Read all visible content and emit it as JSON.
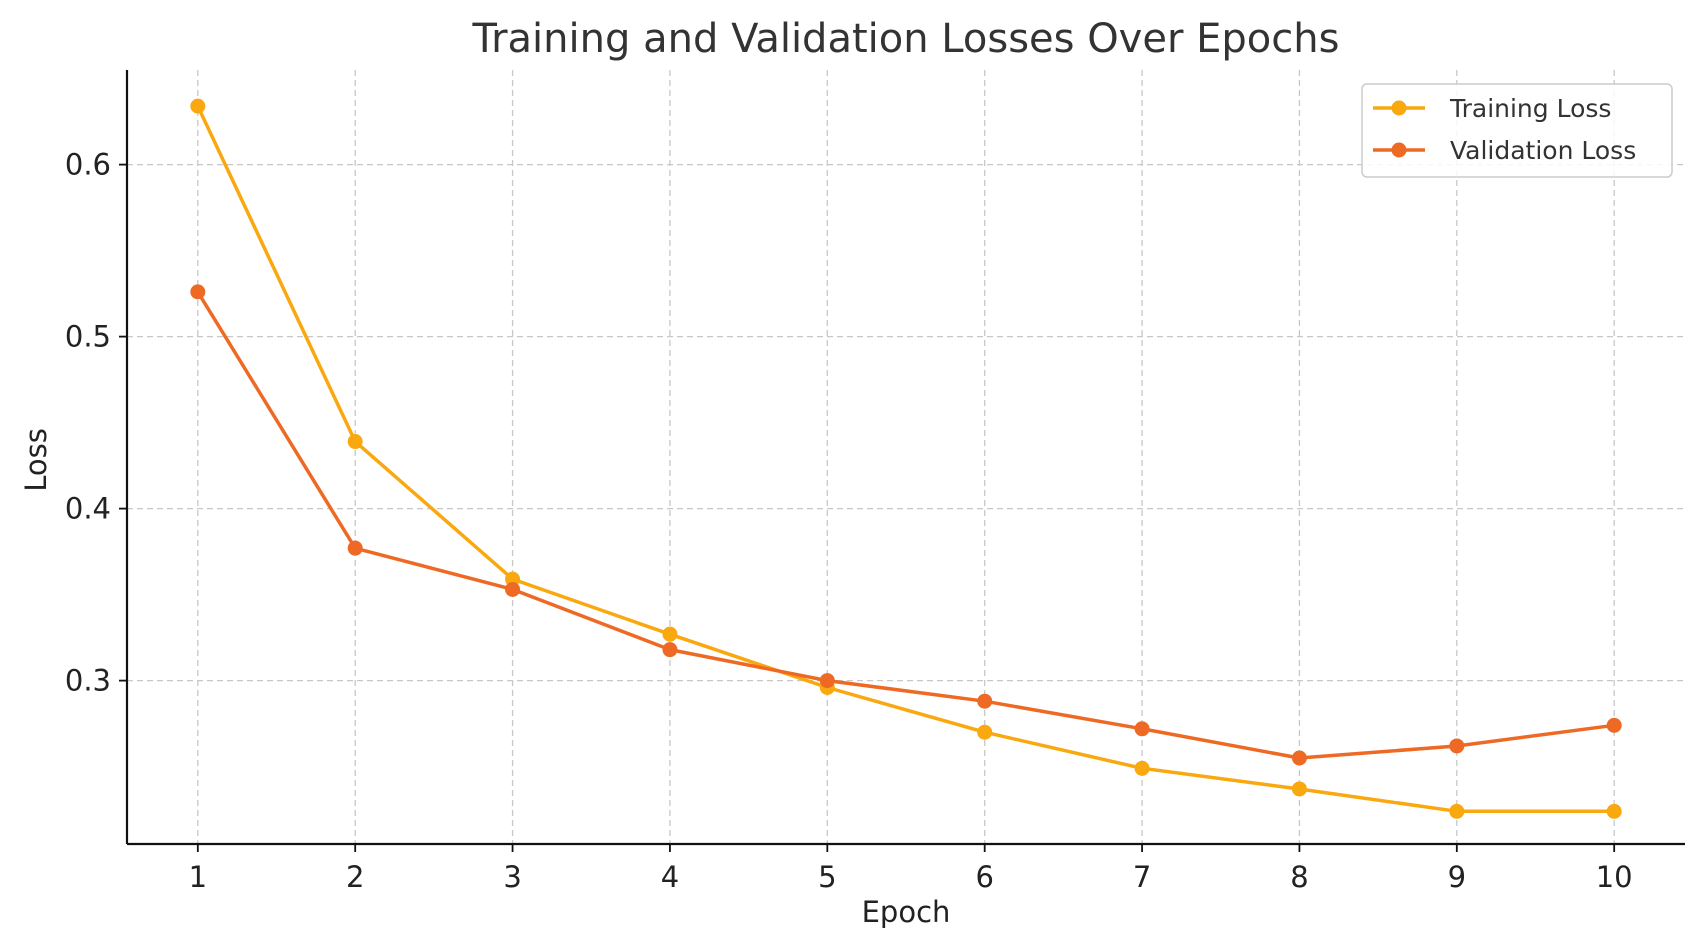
{
  "chart_data": {
    "type": "line",
    "title": "Training and Validation Losses Over Epochs",
    "xlabel": "Epoch",
    "ylabel": "Loss",
    "x": [
      1,
      2,
      3,
      4,
      5,
      6,
      7,
      8,
      9,
      10
    ],
    "x_tick_labels": [
      "1",
      "2",
      "3",
      "4",
      "5",
      "6",
      "7",
      "8",
      "9",
      "10"
    ],
    "y_ticks": [
      0.3,
      0.4,
      0.5,
      0.6
    ],
    "y_tick_labels": [
      "0.3",
      "0.4",
      "0.5",
      "0.6"
    ],
    "xlim": [
      0.55,
      10.45
    ],
    "ylim": [
      0.205,
      0.655
    ],
    "grid": true,
    "legend_position": "top-right",
    "series": [
      {
        "name": "Training Loss",
        "color": "#F9A80F",
        "marker": "circle",
        "values": [
          0.634,
          0.439,
          0.359,
          0.327,
          0.296,
          0.27,
          0.249,
          0.237,
          0.224,
          0.224
        ]
      },
      {
        "name": "Validation Loss",
        "color": "#EE6A24",
        "marker": "circle",
        "values": [
          0.526,
          0.377,
          0.353,
          0.318,
          0.3,
          0.288,
          0.272,
          0.255,
          0.262,
          0.274
        ]
      }
    ]
  }
}
